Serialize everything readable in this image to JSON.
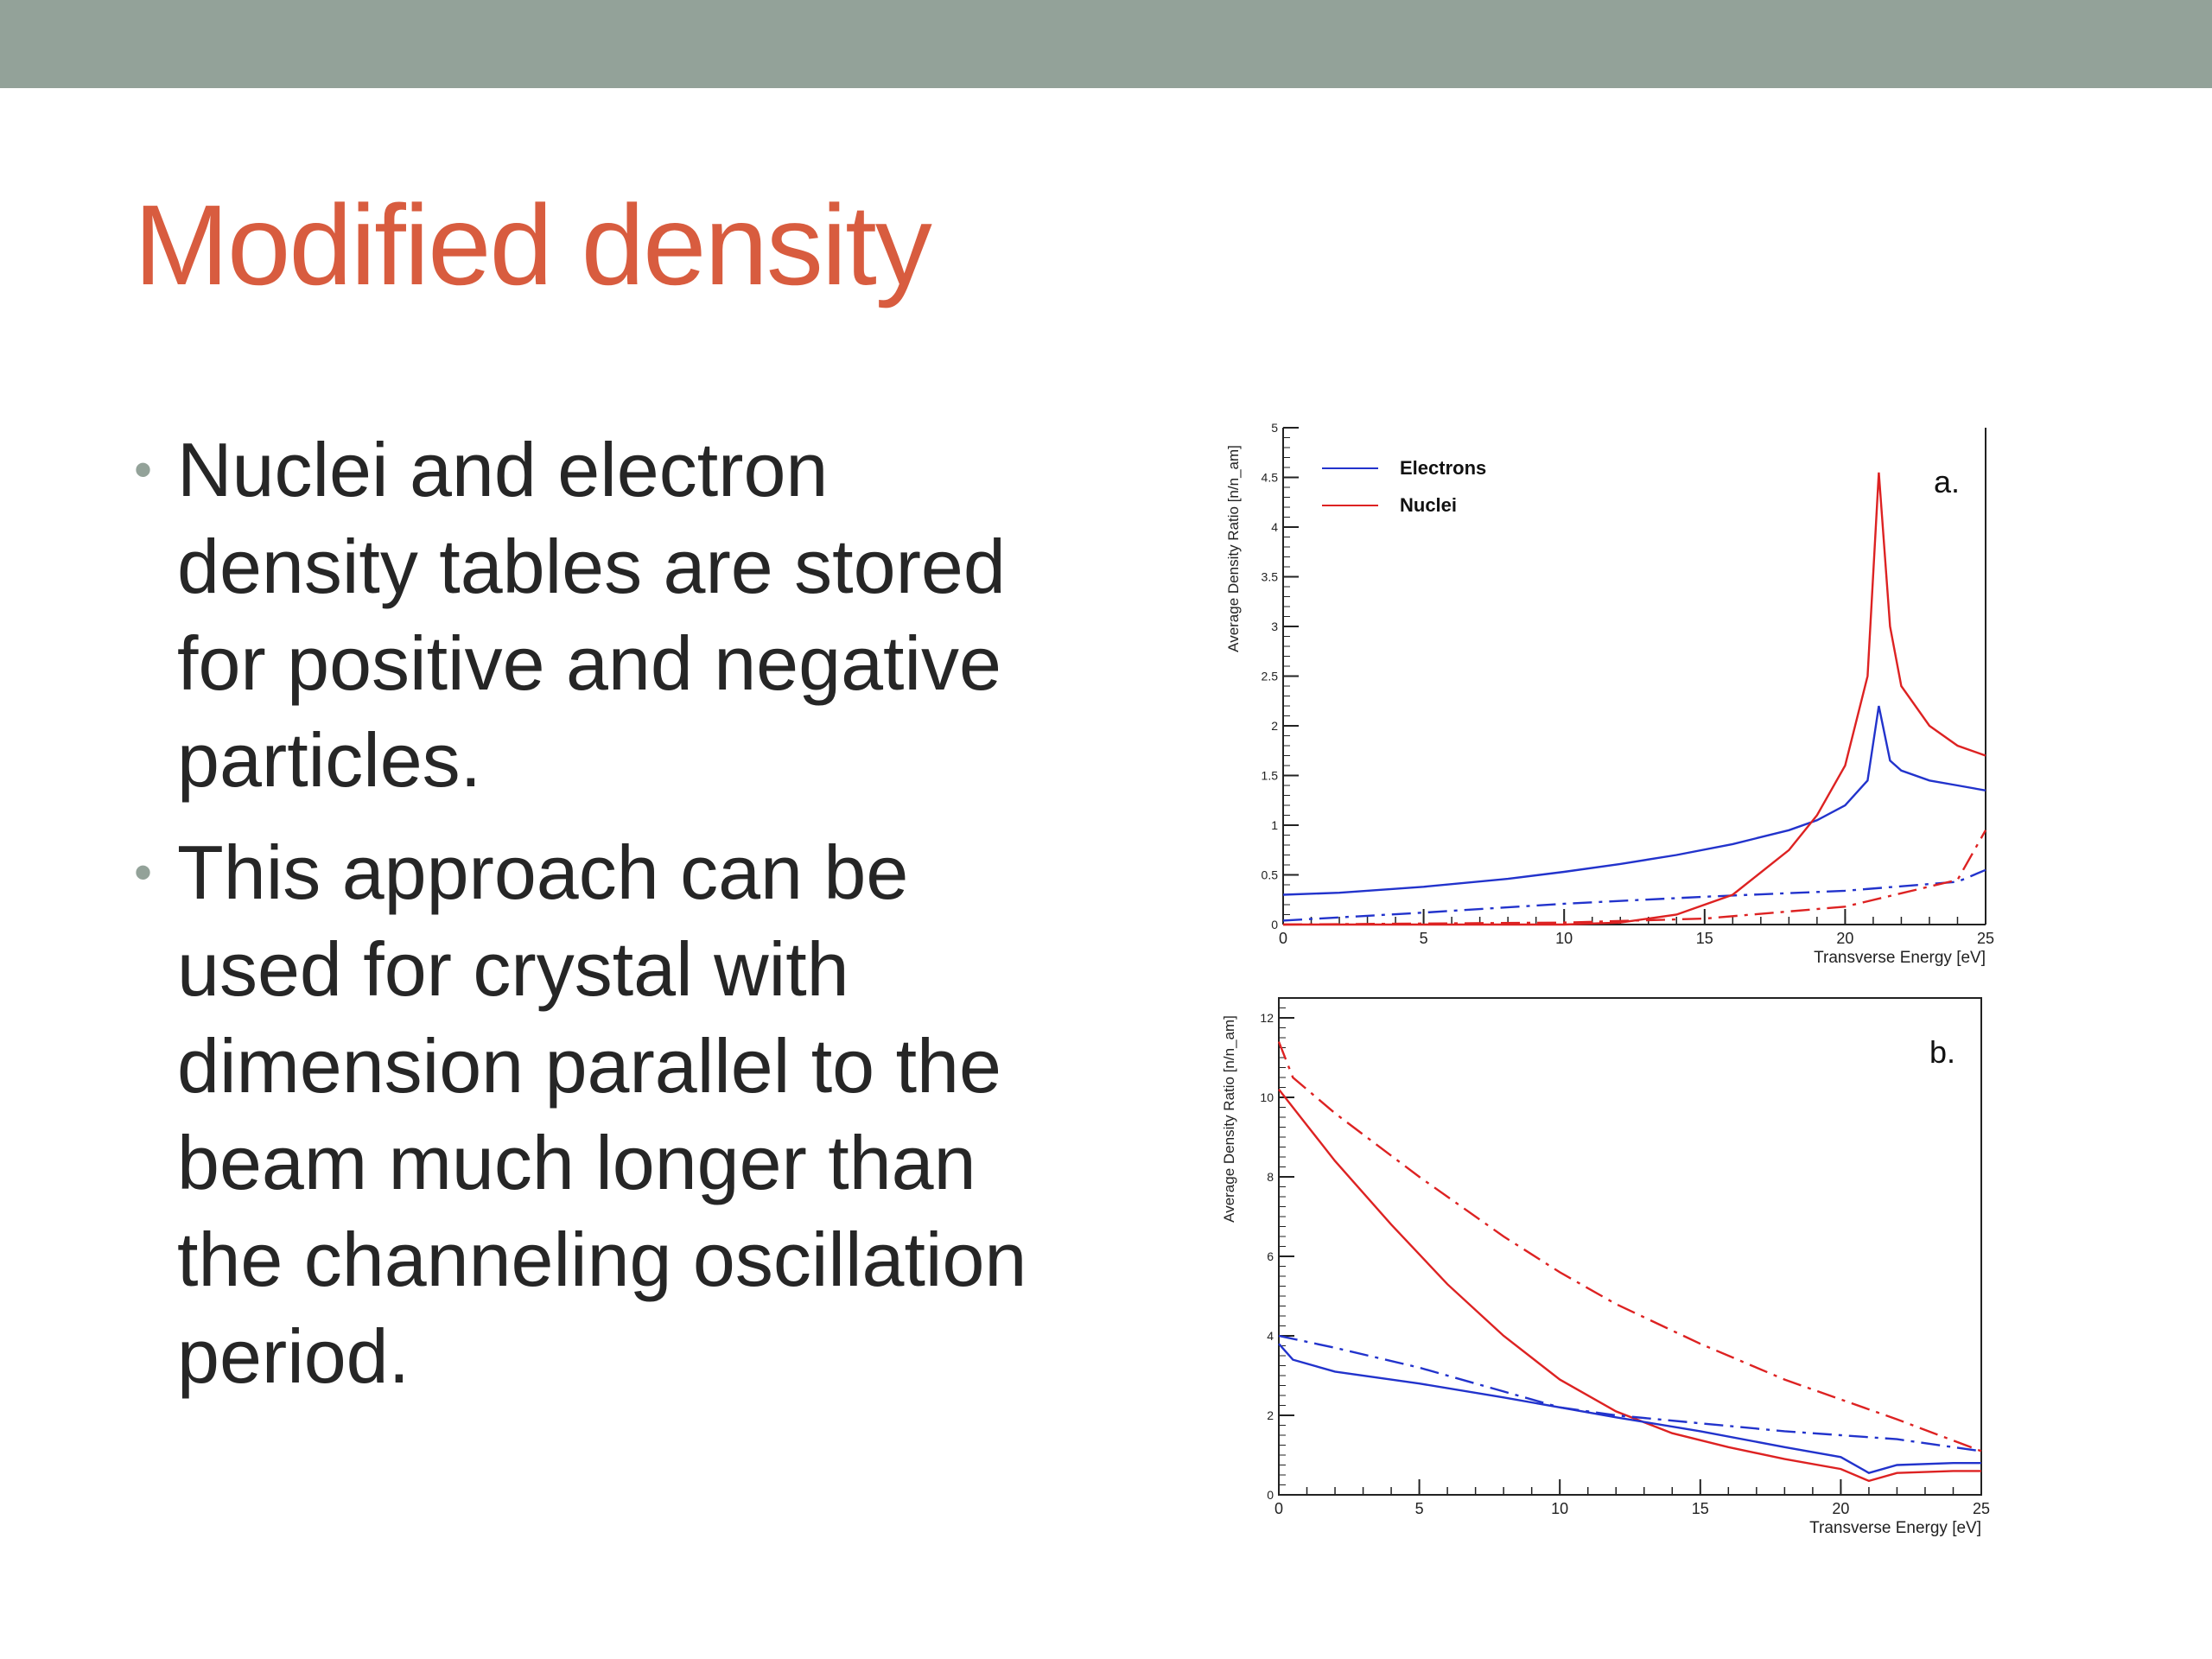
{
  "slide": {
    "title": "Modified density",
    "bullets": [
      "Nuclei and electron density tables are stored for positive and negative particles.",
      "This approach can be used for crystal with dimension parallel to the beam much longer than the channeling oscillation period."
    ],
    "bullet_symbol": "•"
  },
  "colors": {
    "top_bar": "#93a299",
    "title": "#d85c3f",
    "text": "#262626",
    "electrons": "#2233cc",
    "nuclei": "#dd2222"
  },
  "chart_data": [
    {
      "type": "line",
      "panel_label": "a.",
      "xlabel": "Transverse Energy [eV]",
      "ylabel": "Average Density Ratio [n/n_am]",
      "xlim": [
        0,
        25
      ],
      "ylim": [
        0,
        5
      ],
      "xticks": [
        "0",
        "5",
        "10",
        "15",
        "20",
        "25"
      ],
      "yticks": [
        "0",
        "0.5",
        "1",
        "1.5",
        "2",
        "2.5",
        "3",
        "3.5",
        "4",
        "4.5",
        "5"
      ],
      "legend": {
        "position": "top-left",
        "entries": [
          "Electrons",
          "Nuclei"
        ]
      },
      "series": [
        {
          "name": "Electrons",
          "color": "#2233cc",
          "dash": "solid",
          "x": [
            0,
            2,
            5,
            8,
            10,
            12,
            14,
            16,
            18,
            19,
            20,
            20.8,
            21.2,
            21.6,
            22,
            23,
            24,
            25
          ],
          "y": [
            0.3,
            0.32,
            0.38,
            0.46,
            0.53,
            0.61,
            0.7,
            0.81,
            0.95,
            1.05,
            1.2,
            1.45,
            2.2,
            1.65,
            1.55,
            1.45,
            1.4,
            1.35
          ]
        },
        {
          "name": "Electrons",
          "color": "#2233cc",
          "dash": "dashed",
          "x": [
            0,
            5,
            10,
            15,
            20,
            24,
            25
          ],
          "y": [
            0.04,
            0.12,
            0.21,
            0.28,
            0.34,
            0.43,
            0.55
          ]
        },
        {
          "name": "Nuclei",
          "color": "#dd2222",
          "dash": "solid",
          "x": [
            0,
            10,
            12,
            14,
            16,
            18,
            19,
            20,
            20.8,
            21.2,
            21.6,
            22,
            23,
            24,
            25
          ],
          "y": [
            0,
            0,
            0.02,
            0.1,
            0.3,
            0.75,
            1.1,
            1.6,
            2.5,
            4.55,
            3.0,
            2.4,
            2.0,
            1.8,
            1.7
          ]
        },
        {
          "name": "Nuclei",
          "color": "#dd2222",
          "dash": "dashed",
          "x": [
            0,
            10,
            15,
            20,
            24,
            25
          ],
          "y": [
            0,
            0.02,
            0.06,
            0.18,
            0.45,
            0.95
          ]
        }
      ]
    },
    {
      "type": "line",
      "panel_label": "b.",
      "xlabel": "Transverse Energy [eV]",
      "ylabel": "Average Density Ratio [n/n_am]",
      "xlim": [
        0,
        25
      ],
      "ylim": [
        0,
        12.5
      ],
      "xticks": [
        "0",
        "5",
        "10",
        "15",
        "20",
        "25"
      ],
      "yticks": [
        "0",
        "2",
        "4",
        "6",
        "8",
        "10",
        "12"
      ],
      "series": [
        {
          "name": "Nuclei",
          "color": "#dd2222",
          "dash": "solid",
          "x": [
            0,
            1,
            2,
            4,
            6,
            8,
            10,
            12,
            14,
            16,
            18,
            20,
            21,
            22,
            24,
            25
          ],
          "y": [
            10.2,
            9.3,
            8.4,
            6.8,
            5.3,
            4.0,
            2.9,
            2.1,
            1.55,
            1.2,
            0.9,
            0.65,
            0.35,
            0.55,
            0.6,
            0.6
          ]
        },
        {
          "name": "Nuclei",
          "color": "#dd2222",
          "dash": "dashed",
          "x": [
            0,
            0.5,
            2,
            5,
            8,
            10,
            12,
            15,
            18,
            20,
            22,
            25
          ],
          "y": [
            11.4,
            10.5,
            9.6,
            8.0,
            6.5,
            5.6,
            4.8,
            3.8,
            2.9,
            2.4,
            1.9,
            1.1
          ]
        },
        {
          "name": "Electrons",
          "color": "#2233cc",
          "dash": "solid",
          "x": [
            0,
            0.5,
            2,
            5,
            8,
            10,
            12,
            15,
            18,
            20,
            21,
            22,
            24,
            25
          ],
          "y": [
            3.8,
            3.4,
            3.1,
            2.8,
            2.45,
            2.2,
            1.95,
            1.6,
            1.2,
            0.95,
            0.55,
            0.75,
            0.8,
            0.8
          ]
        },
        {
          "name": "Electrons",
          "color": "#2233cc",
          "dash": "dashed",
          "x": [
            0,
            2,
            5,
            8,
            10,
            12,
            15,
            18,
            20,
            22,
            25
          ],
          "y": [
            4.0,
            3.7,
            3.2,
            2.6,
            2.2,
            2.0,
            1.8,
            1.6,
            1.5,
            1.4,
            1.1
          ]
        }
      ]
    }
  ]
}
